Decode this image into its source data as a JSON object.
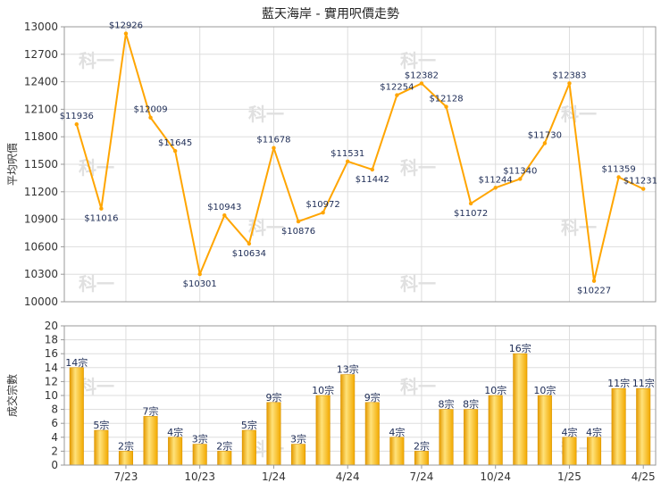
{
  "chart_data": [
    {
      "type": "line",
      "title": "藍天海岸 - 實用呎價走勢",
      "ylabel": "平均呎價",
      "ylim": [
        10000,
        13000
      ],
      "yticks": [
        10000,
        10300,
        10600,
        10900,
        11200,
        11500,
        11800,
        12100,
        12400,
        12700,
        13000
      ],
      "x": [
        "5/23",
        "6/23",
        "7/23",
        "8/23",
        "9/23",
        "10/23",
        "11/23",
        "12/23",
        "1/24",
        "2/24",
        "3/24",
        "4/24",
        "5/24",
        "6/24",
        "7/24",
        "8/24",
        "9/24",
        "10/24",
        "11/24",
        "12/24",
        "1/25",
        "2/25",
        "3/25",
        "4/25"
      ],
      "values": [
        11936,
        11016,
        12926,
        12009,
        11645,
        10301,
        10943,
        10634,
        11678,
        10876,
        10972,
        11531,
        11442,
        12254,
        12382,
        12128,
        11072,
        11244,
        11340,
        11730,
        12383,
        10227,
        11359,
        11231
      ],
      "labels": [
        "$11936",
        "$11016",
        "$12926",
        "$12009",
        "$11645",
        "$10301",
        "$10943",
        "$10634",
        "$11678",
        "$10876",
        "$10972",
        "$11531",
        "$11442",
        "$12254",
        "$12382",
        "$12128",
        "$11072",
        "$11244",
        "$11340",
        "$11730",
        "$12383",
        "$10227",
        "$11359",
        "$11231"
      ],
      "color": "#ffa500",
      "grid": true
    },
    {
      "type": "bar",
      "ylabel": "成交宗數",
      "ylim": [
        0,
        20
      ],
      "yticks": [
        0,
        2,
        4,
        6,
        8,
        10,
        12,
        14,
        16,
        18,
        20
      ],
      "categories": [
        "5/23",
        "6/23",
        "7/23",
        "8/23",
        "9/23",
        "10/23",
        "11/23",
        "12/23",
        "1/24",
        "2/24",
        "3/24",
        "4/24",
        "5/24",
        "6/24",
        "7/24",
        "8/24",
        "9/24",
        "10/24",
        "11/24",
        "12/24",
        "1/25",
        "2/25",
        "3/25",
        "4/25"
      ],
      "values": [
        14,
        5,
        2,
        7,
        4,
        3,
        2,
        5,
        9,
        3,
        10,
        13,
        9,
        4,
        2,
        8,
        8,
        10,
        16,
        10,
        4,
        4,
        11,
        11
      ],
      "labels": [
        "14宗",
        "5宗",
        "2宗",
        "7宗",
        "4宗",
        "3宗",
        "2宗",
        "5宗",
        "9宗",
        "3宗",
        "10宗",
        "13宗",
        "9宗",
        "4宗",
        "2宗",
        "8宗",
        "8宗",
        "10宗",
        "16宗",
        "10宗",
        "4宗",
        "4宗",
        "11宗",
        "11宗"
      ],
      "color": "#f5b400",
      "grid": true
    }
  ],
  "x_tick_labels": [
    "7/23",
    "10/23",
    "1/24",
    "4/24",
    "7/24",
    "10/24",
    "1/25",
    "4/25"
  ],
  "x_tick_indices": [
    2,
    5,
    8,
    11,
    14,
    17,
    20,
    23
  ],
  "watermark": "科一"
}
